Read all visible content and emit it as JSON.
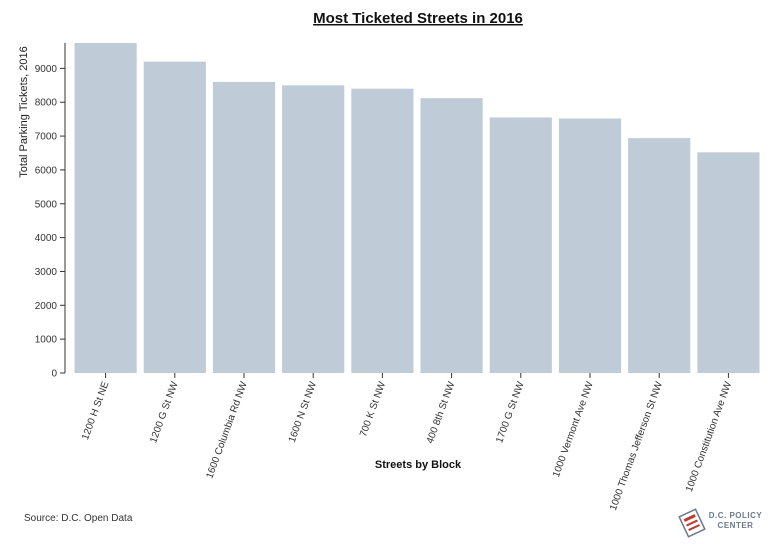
{
  "chart_data": {
    "type": "bar",
    "title": "Most Ticketed Streets in 2016",
    "xlabel": "Streets by Block",
    "ylabel": "Total Parking Tickets, 2016",
    "categories": [
      "1200 H St NE",
      "1200 G St NW",
      "1600 Columbia Rd NW",
      "1600 N St NW",
      "700 K St NW",
      "400 8th St NW",
      "1700 G St NW",
      "1000 Vermont Ave NW",
      "1000 Thomas Jefferson St NW",
      "1000 Constitution Ave NW"
    ],
    "values": [
      9750,
      9200,
      8600,
      8500,
      8400,
      8120,
      7550,
      7520,
      6940,
      6520
    ],
    "ylim": [
      0,
      9750
    ],
    "yticks": [
      0,
      1000,
      2000,
      3000,
      4000,
      5000,
      6000,
      7000,
      8000,
      9000
    ],
    "bar_color": "#bfccd8",
    "grid": false
  },
  "footer": {
    "source": "Source: D.C. Open Data",
    "logo_line1": "D.C. POLICY",
    "logo_line2": "CENTER"
  },
  "colors": {
    "logo": "#6a7a8c"
  }
}
